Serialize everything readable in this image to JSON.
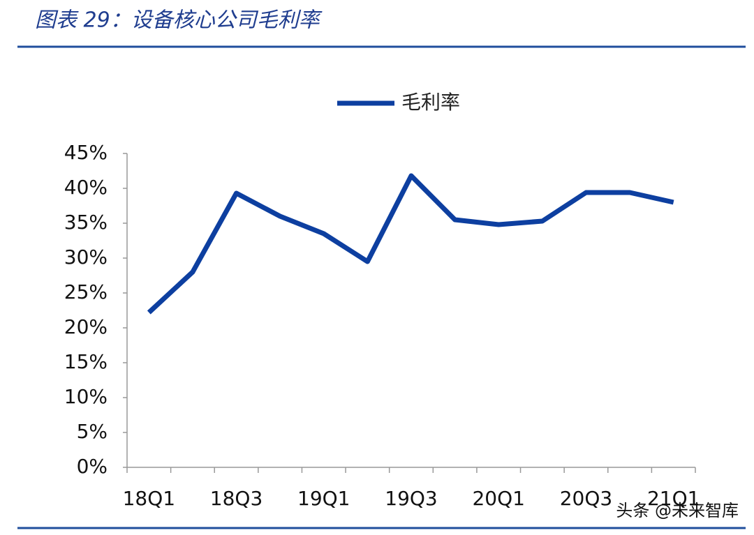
{
  "chart_data": {
    "type": "line",
    "title": "图表 29：设备核心公司毛利率",
    "categories": [
      "18Q1",
      null,
      "18Q3",
      null,
      "19Q1",
      null,
      "19Q3",
      null,
      "20Q1",
      null,
      "20Q3",
      null,
      "21Q1"
    ],
    "series": [
      {
        "name": "毛利率",
        "color": "#0d3fa0",
        "values": [
          22.2,
          28,
          39.3,
          36,
          33.5,
          29.5,
          41.8,
          35.5,
          34.8,
          35.3,
          39.4,
          39.4,
          38
        ]
      }
    ],
    "ylim": [
      0,
      45
    ],
    "yticks": [
      {
        "value": 0,
        "label": "0%"
      },
      {
        "value": 5,
        "label": "5%"
      },
      {
        "value": 10,
        "label": "10%"
      },
      {
        "value": 15,
        "label": "15%"
      },
      {
        "value": 20,
        "label": "20%"
      },
      {
        "value": 25,
        "label": "25%"
      },
      {
        "value": 30,
        "label": "30%"
      },
      {
        "value": 35,
        "label": "35%"
      },
      {
        "value": 40,
        "label": "40%"
      },
      {
        "value": 45,
        "label": "45%"
      }
    ],
    "grid": false
  },
  "watermark": "头条 @未来智库"
}
